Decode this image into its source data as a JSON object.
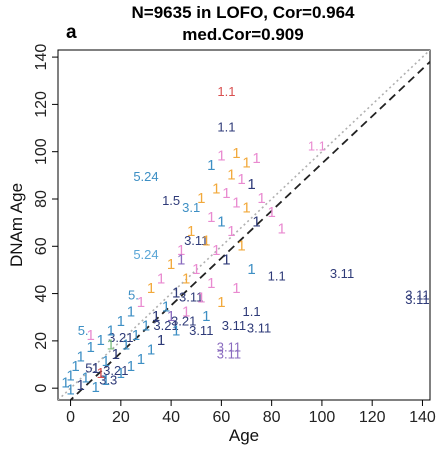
{
  "panel_letter": "a",
  "chart_data": {
    "type": "scatter",
    "title": "N=9635 in LOFO, Cor=0.964",
    "subtitle": "med.Cor=0.909",
    "xlabel": "Age",
    "ylabel": "DNAm Age",
    "xlim": [
      -5,
      143
    ],
    "ylim": [
      -5,
      143
    ],
    "xticks": [
      0,
      20,
      40,
      60,
      80,
      100,
      120,
      140
    ],
    "yticks": [
      0,
      20,
      40,
      60,
      80,
      100,
      120,
      140
    ],
    "grid": false,
    "reference_lines": [
      {
        "type": "identity",
        "style": "dotted",
        "color": "#b0b0b0"
      },
      {
        "type": "regression",
        "style": "dashed",
        "color": "#222222",
        "slope": 1.0,
        "intercept": -5
      }
    ],
    "colors": [
      "#3d8fc4",
      "#5aa6d6",
      "#2e3a78",
      "#e98ad0",
      "#f2a93b",
      "#d94f4f",
      "#8a6bbf",
      "#7fbf7f",
      "#222222"
    ],
    "points": [
      {
        "x": 62,
        "y": 125,
        "label": "1.1",
        "color": "#d94f4f"
      },
      {
        "x": 62,
        "y": 110,
        "label": "1.1",
        "color": "#2e3a78"
      },
      {
        "x": 98,
        "y": 102,
        "label": "1.1",
        "color": "#e98ad0"
      },
      {
        "x": 30,
        "y": 89,
        "label": "5.24",
        "color": "#3d8fc4"
      },
      {
        "x": 40,
        "y": 79,
        "label": "1.5",
        "color": "#2e3a78"
      },
      {
        "x": 30,
        "y": 56,
        "label": "5.24",
        "color": "#5aa6d6"
      },
      {
        "x": 82,
        "y": 47,
        "label": "1.1",
        "color": "#2e3a78"
      },
      {
        "x": 108,
        "y": 48,
        "label": "3.11",
        "color": "#2e3a78"
      },
      {
        "x": 138,
        "y": 39,
        "label": "3.11",
        "color": "#2e3a78"
      },
      {
        "x": 138,
        "y": 37,
        "label": "3.11",
        "color": "#2e3a78"
      },
      {
        "x": 72,
        "y": 32,
        "label": "1.1",
        "color": "#2e3a78"
      },
      {
        "x": 65,
        "y": 26,
        "label": "3.11",
        "color": "#2e3a78"
      },
      {
        "x": 75,
        "y": 25,
        "label": "3.11",
        "color": "#2e3a78"
      },
      {
        "x": 52,
        "y": 24,
        "label": "3.11",
        "color": "#2e3a78"
      },
      {
        "x": 63,
        "y": 17,
        "label": "3.11",
        "color": "#8a6bbf"
      },
      {
        "x": 63,
        "y": 14,
        "label": "3.11",
        "color": "#8a6bbf"
      },
      {
        "x": 48,
        "y": 76,
        "label": "3.1",
        "color": "#3d8fc4"
      },
      {
        "x": 50,
        "y": 62,
        "label": "3.11",
        "color": "#2e3a78"
      },
      {
        "x": 48,
        "y": 38,
        "label": "3.11",
        "color": "#2e3a78"
      },
      {
        "x": 45,
        "y": 28,
        "label": "3.21",
        "color": "#2e3a78"
      },
      {
        "x": 38,
        "y": 26,
        "label": "3.21",
        "color": "#2e3a78"
      },
      {
        "x": 20,
        "y": 21,
        "label": "3.21",
        "color": "#2e3a78"
      },
      {
        "x": 18,
        "y": 7,
        "label": "3.21",
        "color": "#2e3a78"
      },
      {
        "x": 15,
        "y": 3,
        "label": "3.3",
        "color": "#2e3a78"
      },
      {
        "x": 5,
        "y": 24,
        "label": "5.",
        "color": "#3d8fc4"
      },
      {
        "x": 8,
        "y": 8,
        "label": "5.",
        "color": "#2e3a78"
      },
      {
        "x": 25,
        "y": 39,
        "label": "5.",
        "color": "#3d8fc4"
      },
      {
        "x": 60,
        "y": 98,
        "label": "1",
        "color": "#e98ad0"
      },
      {
        "x": 66,
        "y": 99,
        "label": "1",
        "color": "#f2a93b"
      },
      {
        "x": 70,
        "y": 95,
        "label": "1",
        "color": "#f2a93b"
      },
      {
        "x": 74,
        "y": 97,
        "label": "1",
        "color": "#e98ad0"
      },
      {
        "x": 56,
        "y": 94,
        "label": "1",
        "color": "#3d8fc4"
      },
      {
        "x": 64,
        "y": 90,
        "label": "1",
        "color": "#f2a93b"
      },
      {
        "x": 68,
        "y": 88,
        "label": "1",
        "color": "#e98ad0"
      },
      {
        "x": 72,
        "y": 86,
        "label": "1",
        "color": "#2e3a78"
      },
      {
        "x": 58,
        "y": 84,
        "label": "1",
        "color": "#f2a93b"
      },
      {
        "x": 62,
        "y": 82,
        "label": "1",
        "color": "#e98ad0"
      },
      {
        "x": 76,
        "y": 80,
        "label": "1",
        "color": "#e98ad0"
      },
      {
        "x": 52,
        "y": 80,
        "label": "1",
        "color": "#f2a93b"
      },
      {
        "x": 66,
        "y": 78,
        "label": "1",
        "color": "#e98ad0"
      },
      {
        "x": 70,
        "y": 76,
        "label": "1",
        "color": "#f2a93b"
      },
      {
        "x": 80,
        "y": 74,
        "label": "1",
        "color": "#e98ad0"
      },
      {
        "x": 56,
        "y": 72,
        "label": "1",
        "color": "#e98ad0"
      },
      {
        "x": 60,
        "y": 70,
        "label": "1",
        "color": "#3d8fc4"
      },
      {
        "x": 74,
        "y": 70,
        "label": "1",
        "color": "#2e3a78"
      },
      {
        "x": 48,
        "y": 66,
        "label": "1",
        "color": "#f2a93b"
      },
      {
        "x": 64,
        "y": 66,
        "label": "1",
        "color": "#e98ad0"
      },
      {
        "x": 84,
        "y": 67,
        "label": "1",
        "color": "#e98ad0"
      },
      {
        "x": 54,
        "y": 62,
        "label": "1",
        "color": "#f2a93b"
      },
      {
        "x": 68,
        "y": 60,
        "label": "1",
        "color": "#f2a93b"
      },
      {
        "x": 44,
        "y": 58,
        "label": "1",
        "color": "#e98ad0"
      },
      {
        "x": 58,
        "y": 58,
        "label": "1",
        "color": "#e98ad0"
      },
      {
        "x": 62,
        "y": 54,
        "label": "1",
        "color": "#2e3a78"
      },
      {
        "x": 40,
        "y": 52,
        "label": "1",
        "color": "#f2a93b"
      },
      {
        "x": 50,
        "y": 50,
        "label": "1",
        "color": "#e98ad0"
      },
      {
        "x": 72,
        "y": 50,
        "label": "1",
        "color": "#3d8fc4"
      },
      {
        "x": 36,
        "y": 46,
        "label": "1",
        "color": "#e98ad0"
      },
      {
        "x": 46,
        "y": 46,
        "label": "1",
        "color": "#f2a93b"
      },
      {
        "x": 56,
        "y": 44,
        "label": "1",
        "color": "#e98ad0"
      },
      {
        "x": 66,
        "y": 42,
        "label": "1",
        "color": "#e98ad0"
      },
      {
        "x": 32,
        "y": 42,
        "label": "1",
        "color": "#f2a93b"
      },
      {
        "x": 42,
        "y": 40,
        "label": "1",
        "color": "#2e3a78"
      },
      {
        "x": 52,
        "y": 38,
        "label": "1",
        "color": "#e98ad0"
      },
      {
        "x": 60,
        "y": 36,
        "label": "1",
        "color": "#f2a93b"
      },
      {
        "x": 28,
        "y": 36,
        "label": "1",
        "color": "#e98ad0"
      },
      {
        "x": 38,
        "y": 34,
        "label": "1",
        "color": "#3d8fc4"
      },
      {
        "x": 46,
        "y": 32,
        "label": "1",
        "color": "#e98ad0"
      },
      {
        "x": 24,
        "y": 32,
        "label": "1",
        "color": "#3d8fc4"
      },
      {
        "x": 34,
        "y": 30,
        "label": "1",
        "color": "#2e3a78"
      },
      {
        "x": 54,
        "y": 30,
        "label": "1",
        "color": "#3d8fc4"
      },
      {
        "x": 20,
        "y": 28,
        "label": "1",
        "color": "#3d8fc4"
      },
      {
        "x": 30,
        "y": 26,
        "label": "1",
        "color": "#3d8fc4"
      },
      {
        "x": 42,
        "y": 24,
        "label": "1",
        "color": "#3d8fc4"
      },
      {
        "x": 16,
        "y": 24,
        "label": "1",
        "color": "#3d8fc4"
      },
      {
        "x": 26,
        "y": 22,
        "label": "1",
        "color": "#3d8fc4"
      },
      {
        "x": 36,
        "y": 20,
        "label": "1",
        "color": "#2e3a78"
      },
      {
        "x": 12,
        "y": 20,
        "label": "1",
        "color": "#3d8fc4"
      },
      {
        "x": 22,
        "y": 18,
        "label": "1",
        "color": "#3d8fc4"
      },
      {
        "x": 32,
        "y": 16,
        "label": "1",
        "color": "#3d8fc4"
      },
      {
        "x": 8,
        "y": 17,
        "label": "1",
        "color": "#3d8fc4"
      },
      {
        "x": 18,
        "y": 14,
        "label": "1",
        "color": "#2e3a78"
      },
      {
        "x": 28,
        "y": 12,
        "label": "1",
        "color": "#3d8fc4"
      },
      {
        "x": 4,
        "y": 13,
        "label": "1",
        "color": "#3d8fc4"
      },
      {
        "x": 14,
        "y": 11,
        "label": "1",
        "color": "#3d8fc4"
      },
      {
        "x": 24,
        "y": 9,
        "label": "1",
        "color": "#3d8fc4"
      },
      {
        "x": 2,
        "y": 9,
        "label": "1",
        "color": "#3d8fc4"
      },
      {
        "x": 10,
        "y": 8,
        "label": "1",
        "color": "#2e3a78"
      },
      {
        "x": 20,
        "y": 6,
        "label": "1",
        "color": "#3d8fc4"
      },
      {
        "x": 0,
        "y": 5,
        "label": "1",
        "color": "#3d8fc4"
      },
      {
        "x": 6,
        "y": 4,
        "label": "1",
        "color": "#3d8fc4"
      },
      {
        "x": 14,
        "y": 3,
        "label": "1",
        "color": "#3d8fc4"
      },
      {
        "x": -2,
        "y": 2,
        "label": "1",
        "color": "#3d8fc4"
      },
      {
        "x": 4,
        "y": 1,
        "label": "1",
        "color": "#2e3a78"
      },
      {
        "x": 10,
        "y": 0,
        "label": "1",
        "color": "#3d8fc4"
      },
      {
        "x": 0,
        "y": -1,
        "label": "1",
        "color": "#3d8fc4"
      },
      {
        "x": 16,
        "y": 18,
        "label": "1",
        "color": "#7fbf7f"
      },
      {
        "x": 8,
        "y": 22,
        "label": "1",
        "color": "#e98ad0"
      },
      {
        "x": 12,
        "y": 6,
        "label": "1",
        "color": "#d94f4f"
      },
      {
        "x": 40,
        "y": 30,
        "label": "1",
        "color": "#8a6bbf"
      },
      {
        "x": 44,
        "y": 54,
        "label": "1",
        "color": "#8a6bbf"
      }
    ]
  }
}
